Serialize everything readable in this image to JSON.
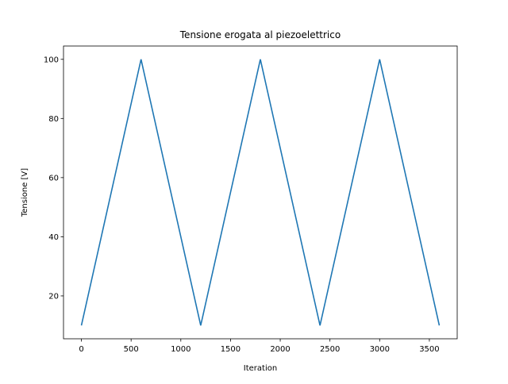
{
  "chart_data": {
    "type": "line",
    "title": "Tensione erogata al piezoelettrico",
    "xlabel": "Iteration",
    "ylabel": "Tensione [V]",
    "xlim": [
      -180,
      3780
    ],
    "ylim": [
      5.5,
      104.5
    ],
    "xticks": [
      0,
      500,
      1000,
      1500,
      2000,
      2500,
      3000,
      3500
    ],
    "yticks": [
      20,
      40,
      60,
      80,
      100
    ],
    "grid": false,
    "legend": "none",
    "series": [
      {
        "color": "#1f77b4",
        "x": [
          0,
          600,
          1200,
          1800,
          2400,
          3000,
          3600
        ],
        "y": [
          10,
          100,
          10,
          100,
          10,
          100,
          10
        ]
      }
    ]
  }
}
